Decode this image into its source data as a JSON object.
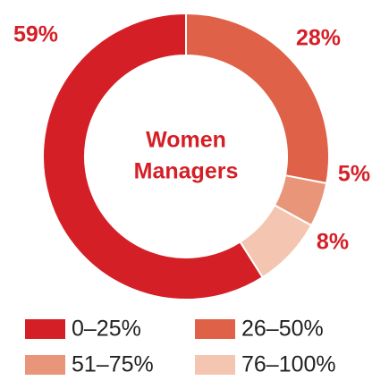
{
  "chart_data": {
    "type": "donut",
    "center_label": [
      "Women",
      "Managers"
    ],
    "categories": [
      "0–25%",
      "26–50%",
      "51–75%",
      "76–100%"
    ],
    "values": [
      59,
      28,
      5,
      8
    ],
    "value_labels": [
      "59%",
      "28%",
      "5%",
      "8%"
    ],
    "colors": [
      "#d51f27",
      "#df6147",
      "#e8957a",
      "#f4c5b1"
    ],
    "legend": "bottom"
  }
}
